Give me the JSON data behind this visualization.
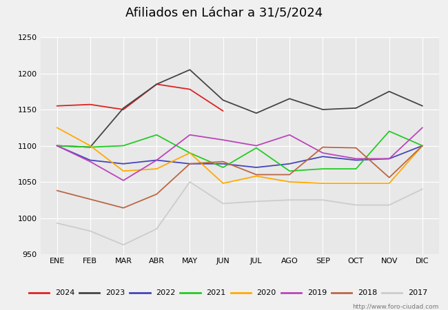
{
  "title": "Afiliados en Láchar a 31/5/2024",
  "ylim": [
    950,
    1250
  ],
  "yticks": [
    950,
    1000,
    1050,
    1100,
    1150,
    1200,
    1250
  ],
  "months": [
    "ENE",
    "FEB",
    "MAR",
    "ABR",
    "MAY",
    "JUN",
    "JUL",
    "AGO",
    "SEP",
    "OCT",
    "NOV",
    "DIC"
  ],
  "series": [
    {
      "year": "2024",
      "color": "#dd2222",
      "data": [
        1155,
        1157,
        1150,
        1185,
        1178,
        1148,
        null,
        null,
        null,
        null,
        null,
        null
      ]
    },
    {
      "year": "2023",
      "color": "#444444",
      "data": [
        1100,
        1098,
        1152,
        1185,
        1205,
        1163,
        1145,
        1165,
        1150,
        1152,
        1175,
        1155
      ]
    },
    {
      "year": "2022",
      "color": "#4444bb",
      "data": [
        1100,
        1080,
        1075,
        1080,
        1075,
        1075,
        1070,
        1075,
        1085,
        1080,
        1082,
        1100
      ]
    },
    {
      "year": "2021",
      "color": "#22cc22",
      "data": [
        1100,
        1098,
        1100,
        1115,
        1090,
        1070,
        1097,
        1065,
        1068,
        1068,
        1120,
        1100
      ]
    },
    {
      "year": "2020",
      "color": "#ffaa00",
      "data": [
        1125,
        1100,
        1065,
        1068,
        1090,
        1048,
        1058,
        1050,
        1048,
        1048,
        1048,
        1100
      ]
    },
    {
      "year": "2019",
      "color": "#bb44bb",
      "data": [
        1100,
        1078,
        1052,
        1080,
        1115,
        1108,
        1100,
        1115,
        1090,
        1082,
        1082,
        1125
      ]
    },
    {
      "year": "2018",
      "color": "#bb6644",
      "data": [
        1038,
        1026,
        1014,
        1033,
        1075,
        1078,
        1060,
        1060,
        1098,
        1097,
        1056,
        1100
      ]
    },
    {
      "year": "2017",
      "color": "#cccccc",
      "data": [
        993,
        982,
        963,
        985,
        1050,
        1020,
        1023,
        1025,
        1025,
        1018,
        1018,
        1040
      ]
    }
  ],
  "footer": "http://www.foro-ciudad.com",
  "bg_color": "#e8e8e8",
  "fig_bg": "#f0f0f0",
  "title_bg": "#7ab8d4",
  "grid_color": "#ffffff",
  "tick_fontsize": 8,
  "title_fontsize": 13
}
